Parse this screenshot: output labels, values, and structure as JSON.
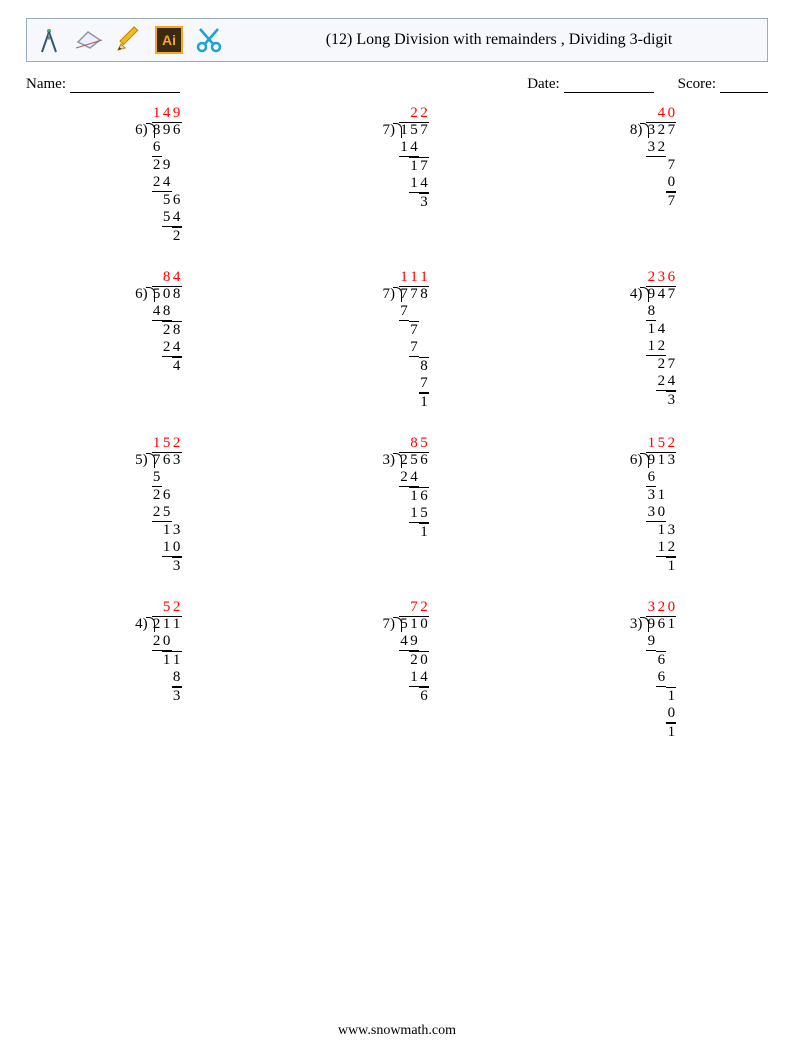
{
  "colors": {
    "quotient": "#ff0000",
    "background": "#ffffff"
  },
  "toolbar_icons": [
    "compass",
    "eraser",
    "pencil",
    "ai-app",
    "scissors"
  ],
  "title": "(12) Long Division with remainders , Dividing 3-digit",
  "labels": {
    "name": "Name:",
    "date": "Date:",
    "score": "Score:"
  },
  "line_widths": {
    "name": 110,
    "date": 90,
    "score": 48
  },
  "footer": "www.snowmath.com",
  "font_family": "Times New Roman",
  "grid_layout": {
    "rows": 4,
    "cols": 3
  },
  "problems": [
    {
      "divisor": "6",
      "dividend": "896",
      "quotient": "149",
      "steps": [
        {
          "val": "6",
          "indent": 0,
          "len": 1,
          "uline": true
        },
        {
          "val": "29",
          "indent": 0,
          "len": 2
        },
        {
          "val": "24",
          "indent": 0,
          "len": 2,
          "uline": true
        },
        {
          "val": "56",
          "indent": 1,
          "len": 2
        },
        {
          "val": "54",
          "indent": 1,
          "len": 2,
          "uline": true
        },
        {
          "val": "2",
          "indent": 2,
          "len": 1,
          "tline": true
        }
      ]
    },
    {
      "divisor": "7",
      "dividend": "157",
      "quotient": "22",
      "quo_indent": 1,
      "steps": [
        {
          "val": "14",
          "indent": 0,
          "len": 2,
          "uline": true
        },
        {
          "val": "17",
          "indent": 1,
          "len": 2,
          "tline": true
        },
        {
          "val": "14",
          "indent": 1,
          "len": 2,
          "uline": true
        },
        {
          "val": "3",
          "indent": 2,
          "len": 1,
          "tline": true
        }
      ]
    },
    {
      "divisor": "8",
      "dividend": "327",
      "quotient": "40",
      "quo_indent": 1,
      "steps": [
        {
          "val": "32",
          "indent": 0,
          "len": 2,
          "uline": true
        },
        {
          "val": "7",
          "indent": 2,
          "len": 1
        },
        {
          "val": "0",
          "indent": 2,
          "len": 1,
          "uline": true
        },
        {
          "val": "7",
          "indent": 2,
          "len": 1,
          "tline": true
        }
      ]
    },
    {
      "divisor": "6",
      "dividend": "508",
      "quotient": "84",
      "quo_indent": 1,
      "steps": [
        {
          "val": "48",
          "indent": 0,
          "len": 2,
          "uline": true
        },
        {
          "val": "28",
          "indent": 1,
          "len": 2,
          "tline": true
        },
        {
          "val": "24",
          "indent": 1,
          "len": 2,
          "uline": true
        },
        {
          "val": "4",
          "indent": 2,
          "len": 1,
          "tline": true
        }
      ]
    },
    {
      "divisor": "7",
      "dividend": "778",
      "quotient": "111",
      "steps": [
        {
          "val": "7",
          "indent": 0,
          "len": 1,
          "uline": true
        },
        {
          "val": "7",
          "indent": 1,
          "len": 1,
          "tline": true
        },
        {
          "val": "7",
          "indent": 1,
          "len": 1,
          "uline": true
        },
        {
          "val": "8",
          "indent": 2,
          "len": 1,
          "tline": true
        },
        {
          "val": "7",
          "indent": 2,
          "len": 1,
          "uline": true
        },
        {
          "val": "1",
          "indent": 2,
          "len": 1,
          "tline": true
        }
      ]
    },
    {
      "divisor": "4",
      "dividend": "947",
      "quotient": "236",
      "steps": [
        {
          "val": "8",
          "indent": 0,
          "len": 1,
          "uline": true
        },
        {
          "val": "14",
          "indent": 0,
          "len": 2
        },
        {
          "val": "12",
          "indent": 0,
          "len": 2,
          "uline": true
        },
        {
          "val": "27",
          "indent": 1,
          "len": 2
        },
        {
          "val": "24",
          "indent": 1,
          "len": 2,
          "uline": true
        },
        {
          "val": "3",
          "indent": 2,
          "len": 1,
          "tline": true
        }
      ]
    },
    {
      "divisor": "5",
      "dividend": "763",
      "quotient": "152",
      "steps": [
        {
          "val": "5",
          "indent": 0,
          "len": 1,
          "uline": true
        },
        {
          "val": "26",
          "indent": 0,
          "len": 2
        },
        {
          "val": "25",
          "indent": 0,
          "len": 2,
          "uline": true
        },
        {
          "val": "13",
          "indent": 1,
          "len": 2
        },
        {
          "val": "10",
          "indent": 1,
          "len": 2,
          "uline": true
        },
        {
          "val": "3",
          "indent": 2,
          "len": 1,
          "tline": true
        }
      ]
    },
    {
      "divisor": "3",
      "dividend": "256",
      "quotient": "85",
      "quo_indent": 1,
      "steps": [
        {
          "val": "24",
          "indent": 0,
          "len": 2,
          "uline": true
        },
        {
          "val": "16",
          "indent": 1,
          "len": 2,
          "tline": true
        },
        {
          "val": "15",
          "indent": 1,
          "len": 2,
          "uline": true
        },
        {
          "val": "1",
          "indent": 2,
          "len": 1,
          "tline": true
        }
      ]
    },
    {
      "divisor": "6",
      "dividend": "913",
      "quotient": "152",
      "steps": [
        {
          "val": "6",
          "indent": 0,
          "len": 1,
          "uline": true
        },
        {
          "val": "31",
          "indent": 0,
          "len": 2
        },
        {
          "val": "30",
          "indent": 0,
          "len": 2,
          "uline": true
        },
        {
          "val": "13",
          "indent": 1,
          "len": 2
        },
        {
          "val": "12",
          "indent": 1,
          "len": 2,
          "uline": true
        },
        {
          "val": "1",
          "indent": 2,
          "len": 1,
          "tline": true
        }
      ]
    },
    {
      "divisor": "4",
      "dividend": "211",
      "quotient": "52",
      "quo_indent": 1,
      "steps": [
        {
          "val": "20",
          "indent": 0,
          "len": 2,
          "uline": true
        },
        {
          "val": "11",
          "indent": 1,
          "len": 2,
          "tline": true
        },
        {
          "val": "8",
          "indent": 2,
          "len": 1,
          "uline": true
        },
        {
          "val": "3",
          "indent": 2,
          "len": 1,
          "tline": true
        }
      ]
    },
    {
      "divisor": "7",
      "dividend": "510",
      "quotient": "72",
      "quo_indent": 1,
      "steps": [
        {
          "val": "49",
          "indent": 0,
          "len": 2,
          "uline": true
        },
        {
          "val": "20",
          "indent": 1,
          "len": 2,
          "tline": true
        },
        {
          "val": "14",
          "indent": 1,
          "len": 2,
          "uline": true
        },
        {
          "val": "6",
          "indent": 2,
          "len": 1,
          "tline": true
        }
      ]
    },
    {
      "divisor": "3",
      "dividend": "961",
      "quotient": "320",
      "steps": [
        {
          "val": "9",
          "indent": 0,
          "len": 1,
          "uline": true
        },
        {
          "val": "6",
          "indent": 1,
          "len": 1,
          "tline": true
        },
        {
          "val": "6",
          "indent": 1,
          "len": 1,
          "uline": true
        },
        {
          "val": "1",
          "indent": 2,
          "len": 1,
          "tline": true
        },
        {
          "val": "0",
          "indent": 2,
          "len": 1,
          "uline": true
        },
        {
          "val": "1",
          "indent": 2,
          "len": 1,
          "tline": true
        }
      ]
    }
  ]
}
